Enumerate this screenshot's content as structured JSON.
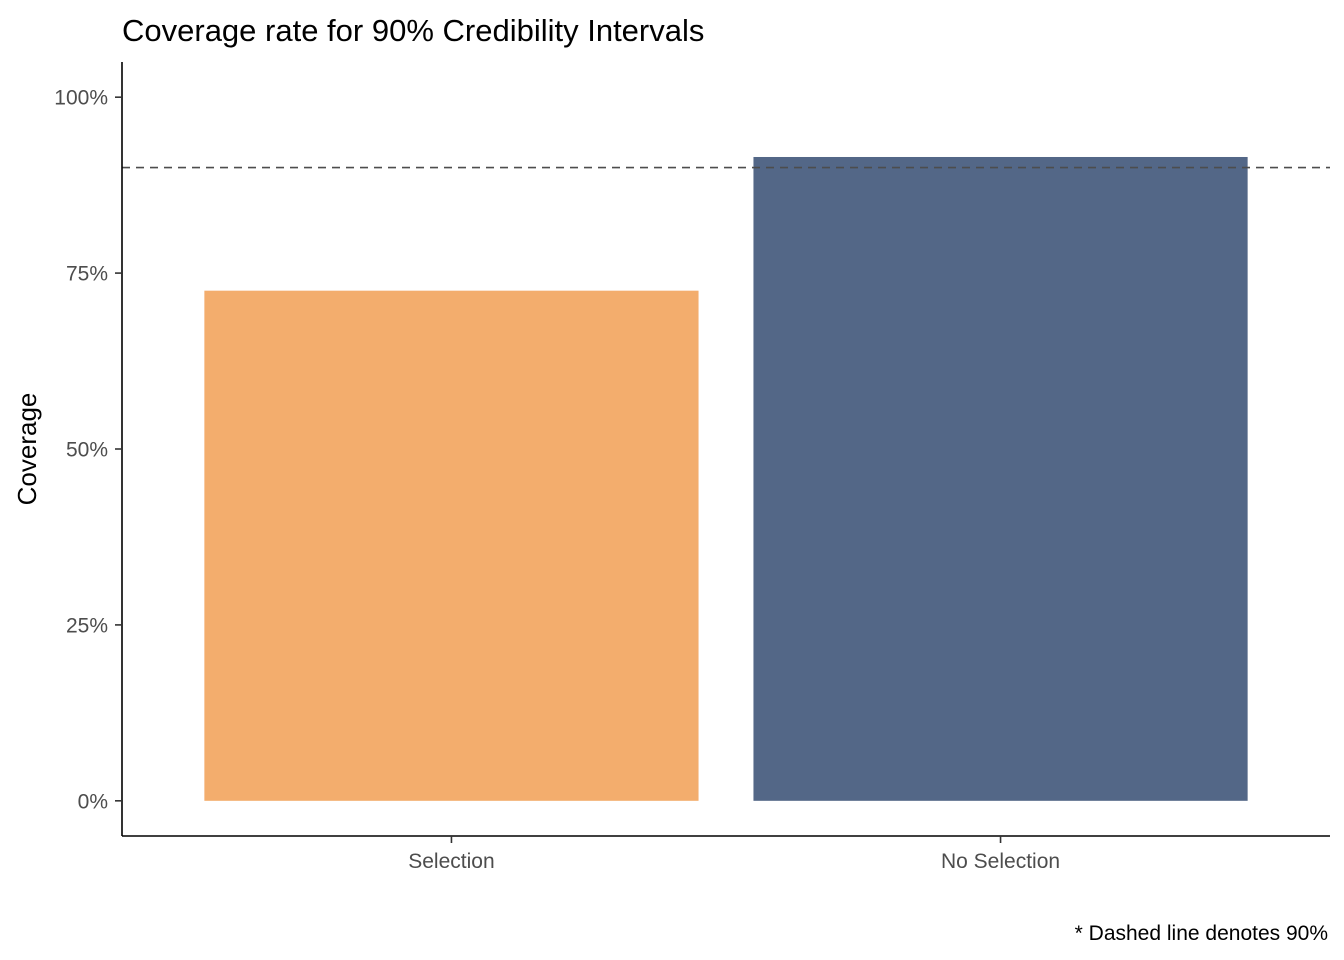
{
  "chart_data": {
    "type": "bar",
    "title": "Coverage rate for 90% Credibility Intervals",
    "xlabel": "",
    "ylabel": "Coverage",
    "categories": [
      "Selection",
      "No Selection"
    ],
    "values": [
      0.725,
      0.915
    ],
    "colors": [
      "#F3AD6D",
      "#536787"
    ],
    "ylim": [
      -0.05,
      1.05
    ],
    "yticks": [
      0,
      0.25,
      0.5,
      0.75,
      1.0
    ],
    "ytick_labels": [
      "0%",
      "25%",
      "50%",
      "75%",
      "100%"
    ],
    "reference_line": {
      "value": 0.9,
      "style": "dashed",
      "color": "#4d4d4d"
    },
    "caption": "* Dashed line denotes 90%",
    "grid": false,
    "legend": "none"
  }
}
